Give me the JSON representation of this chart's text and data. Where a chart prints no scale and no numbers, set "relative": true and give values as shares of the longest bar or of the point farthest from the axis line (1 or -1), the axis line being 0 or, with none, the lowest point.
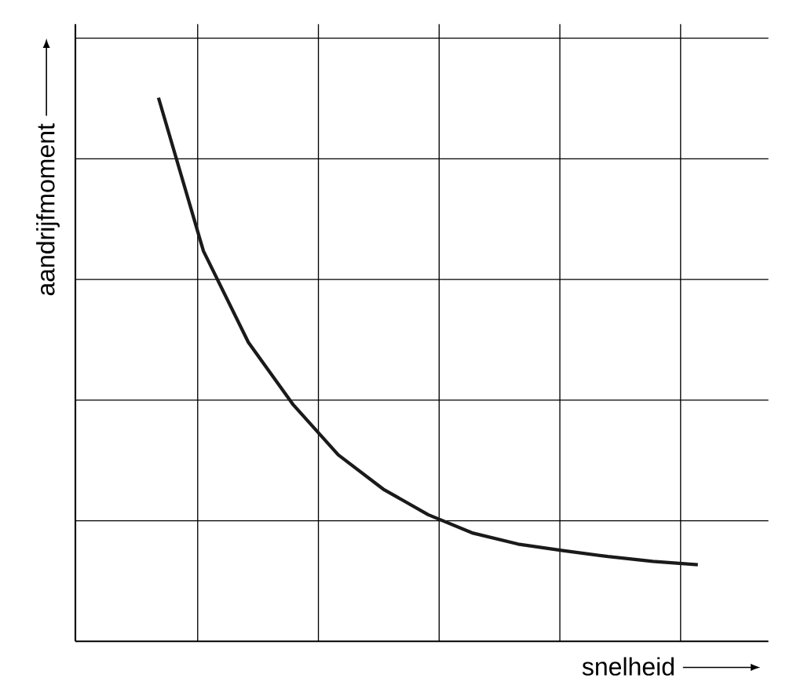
{
  "chart_data": {
    "type": "line",
    "relative": true,
    "xlabel": "snelheid",
    "ylabel": "aandrijfmoment",
    "categories": [
      null,
      null,
      null,
      null,
      null,
      null,
      null,
      null,
      null,
      null,
      null,
      null,
      null
    ],
    "series": [
      {
        "color": "#1a1a1a",
        "values": [
          1.0,
          0.718,
          0.55,
          0.435,
          0.343,
          0.28,
          0.233,
          0.199,
          0.179,
          0.167,
          0.156,
          0.147,
          0.141
        ]
      }
    ],
    "grid": true,
    "marker": "none",
    "line_style": "solid"
  }
}
